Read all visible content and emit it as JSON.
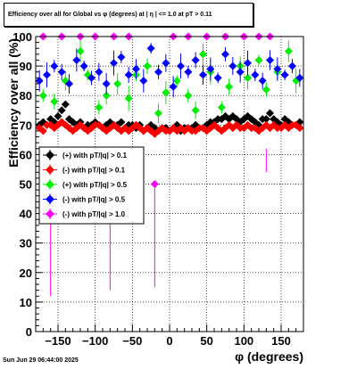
{
  "footer": {
    "timestamp": "Sun Jun 29 06:44:00 2025"
  },
  "colors": {
    "s1": "#000000",
    "s2": "#ff0000",
    "s3": "#00ee00",
    "s4": "#0000ff",
    "s5": "#ff00ff"
  },
  "chart_data": {
    "type": "scatter",
    "title": "Efficiency over all for Global vs φ (degrees) at | η | <= 1.0 at pT > 0.11",
    "xlabel": "φ (degrees)",
    "ylabel": "Efficiency over all (%)",
    "xlim": [
      -180,
      180
    ],
    "ylim": [
      0,
      100
    ],
    "x_ticks": [
      -150,
      -100,
      -50,
      0,
      50,
      100,
      150
    ],
    "x_tick_labels": [
      "−150",
      "−100",
      "−50",
      "0",
      "50",
      "100",
      "150"
    ],
    "y_ticks": [
      0,
      10,
      20,
      30,
      40,
      50,
      60,
      70,
      80,
      90,
      100
    ],
    "y_tick_labels": [
      "0",
      "10",
      "20",
      "30",
      "40",
      "50",
      "60",
      "70",
      "80",
      "90",
      "100"
    ],
    "grid": true,
    "legend_position": "left",
    "series": [
      {
        "name": "(+) with pT/|q| > 0.1",
        "color": "#000000",
        "x": [
          -175,
          -170,
          -165,
          -160,
          -155,
          -150,
          -145,
          -140,
          -135,
          -130,
          -125,
          -120,
          -115,
          -110,
          -105,
          -100,
          -95,
          -90,
          -85,
          -80,
          -75,
          -70,
          -65,
          -60,
          -55,
          -50,
          -45,
          -40,
          -35,
          -30,
          -25,
          -20,
          -15,
          -10,
          -5,
          0,
          5,
          10,
          15,
          20,
          25,
          30,
          35,
          40,
          45,
          50,
          55,
          60,
          65,
          70,
          75,
          80,
          85,
          90,
          95,
          100,
          105,
          110,
          115,
          120,
          125,
          130,
          135,
          140,
          145,
          150,
          155,
          160,
          165,
          170,
          175
        ],
        "y": [
          70,
          71,
          70,
          72,
          71,
          73,
          75,
          77,
          72,
          71,
          70,
          71,
          69,
          70,
          70,
          71,
          70,
          69,
          70,
          71,
          70,
          70,
          71,
          69,
          70,
          70,
          69,
          70,
          68,
          69,
          70,
          69,
          68,
          69,
          69,
          68,
          69,
          70,
          68,
          69,
          69,
          69,
          70,
          69,
          69,
          70,
          71,
          71,
          72,
          72,
          73,
          72,
          73,
          72,
          71,
          72,
          73,
          72,
          71,
          70,
          72,
          72,
          74,
          72,
          71,
          70,
          72,
          71,
          70,
          70,
          71
        ]
      },
      {
        "name": "(-) with pT/|q| > 0.1",
        "color": "#ff0000",
        "x": [
          -175,
          -170,
          -165,
          -160,
          -155,
          -150,
          -145,
          -140,
          -135,
          -130,
          -125,
          -120,
          -115,
          -110,
          -105,
          -100,
          -95,
          -90,
          -85,
          -80,
          -75,
          -70,
          -65,
          -60,
          -55,
          -50,
          -45,
          -40,
          -35,
          -30,
          -25,
          -20,
          -15,
          -10,
          -5,
          0,
          5,
          10,
          15,
          20,
          25,
          30,
          35,
          40,
          45,
          50,
          55,
          60,
          65,
          70,
          75,
          80,
          85,
          90,
          95,
          100,
          105,
          110,
          115,
          120,
          125,
          130,
          135,
          140,
          145,
          150,
          155,
          160,
          165,
          170,
          175
        ],
        "y": [
          69,
          68,
          70,
          70,
          69,
          70,
          71,
          70,
          69,
          68,
          69,
          70,
          69,
          68,
          69,
          70,
          70,
          69,
          68,
          69,
          70,
          69,
          68,
          69,
          68,
          69,
          70,
          69,
          68,
          69,
          68,
          67,
          68,
          69,
          68,
          68,
          69,
          68,
          69,
          68,
          69,
          68,
          68,
          69,
          69,
          68,
          69,
          70,
          69,
          68,
          69,
          70,
          69,
          70,
          69,
          69,
          70,
          69,
          69,
          68,
          69,
          70,
          69,
          70,
          69,
          69,
          70,
          69,
          70,
          70,
          69
        ]
      },
      {
        "name": "(+) with pT/|q| > 0.5",
        "color": "#00ee00",
        "x": [
          -170,
          -155,
          -140,
          -120,
          -110,
          -95,
          -85,
          -70,
          -55,
          -45,
          -30,
          -15,
          -5,
          10,
          25,
          35,
          45,
          55,
          70,
          80,
          95,
          105,
          120,
          130,
          145,
          160,
          170
        ],
        "y": [
          80,
          78,
          85,
          95,
          87,
          76,
          80,
          84,
          79,
          87,
          90,
          74,
          81,
          85,
          80,
          75,
          94,
          88,
          76,
          83,
          90,
          86,
          92,
          82,
          88,
          95,
          85
        ]
      },
      {
        "name": "(-) with pT/|q| > 0.5",
        "color": "#0000ff",
        "x": [
          -175,
          -165,
          -155,
          -145,
          -135,
          -125,
          -115,
          -105,
          -95,
          -85,
          -75,
          -65,
          -55,
          -45,
          -35,
          -25,
          -15,
          -5,
          5,
          15,
          25,
          35,
          45,
          55,
          65,
          75,
          85,
          95,
          105,
          115,
          125,
          135,
          145,
          155,
          165,
          175
        ],
        "y": [
          85,
          87,
          90,
          88,
          84,
          92,
          90,
          86,
          88,
          84,
          91,
          93,
          87,
          89,
          85,
          96,
          88,
          91,
          83,
          90,
          88,
          92,
          87,
          89,
          86,
          94,
          90,
          88,
          91,
          87,
          85,
          92,
          89,
          87,
          90,
          86
        ]
      },
      {
        "name": "(-) with pT/|q| > 1.0",
        "color": "#ff00ff",
        "x": [
          -170,
          -145,
          -120,
          -100,
          -75,
          -55,
          -20,
          5,
          25,
          50,
          75,
          100,
          120,
          135
        ],
        "y": [
          100,
          100,
          100,
          100,
          100,
          100,
          50,
          100,
          100,
          100,
          100,
          100,
          100,
          100
        ]
      }
    ]
  }
}
